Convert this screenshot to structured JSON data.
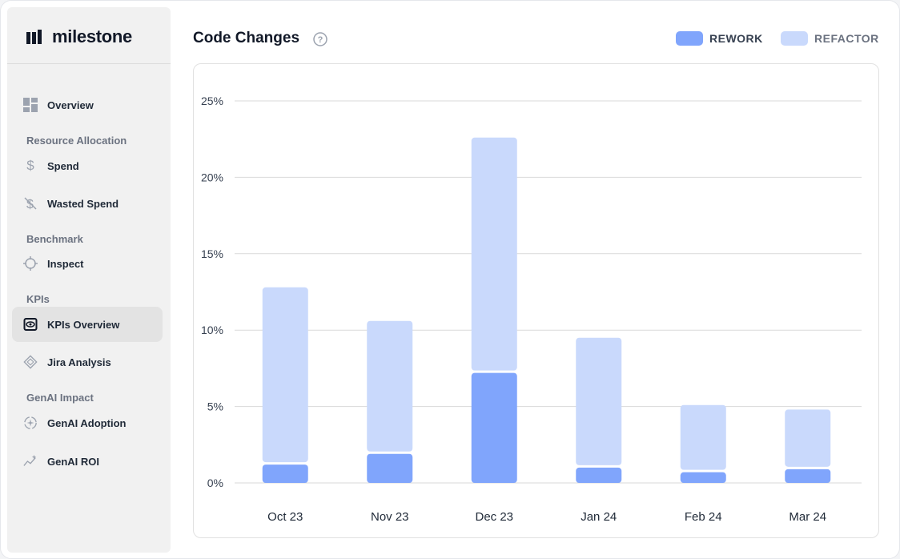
{
  "app": {
    "logo_text": "milestone"
  },
  "sidebar": {
    "items": [
      {
        "label": "Overview",
        "icon": "dashboard-icon"
      },
      {
        "label": "Spend",
        "icon": "dollar-icon"
      },
      {
        "label": "Wasted Spend",
        "icon": "dollar-slash-icon"
      },
      {
        "label": "Inspect",
        "icon": "crosshair-icon"
      },
      {
        "label": "KPIs Overview",
        "icon": "eye-icon",
        "active": true
      },
      {
        "label": "Jira Analysis",
        "icon": "diamond-icon"
      },
      {
        "label": "GenAI Adoption",
        "icon": "sparkle-cycle-icon"
      },
      {
        "label": "GenAI ROI",
        "icon": "sparkle-trend-icon"
      }
    ],
    "sections": [
      "Resource Allocation",
      "Benchmark",
      "KPIs",
      "GenAI Impact"
    ]
  },
  "header": {
    "title": "Code Changes"
  },
  "colors": {
    "rework": "#80a5fc",
    "refactor": "#c9d9fc"
  },
  "chart_data": {
    "type": "bar",
    "stacked": true,
    "categories": [
      "Oct 23",
      "Nov 23",
      "Dec 23",
      "Jan 24",
      "Feb 24",
      "Mar 24"
    ],
    "series": [
      {
        "name": "REWORK",
        "values": [
          1.2,
          1.9,
          7.2,
          1.0,
          0.7,
          0.9
        ]
      },
      {
        "name": "REFACTOR",
        "values": [
          11.6,
          8.7,
          15.4,
          8.5,
          4.4,
          3.9
        ]
      }
    ],
    "y_ticks": [
      "0%",
      "5%",
      "10%",
      "15%",
      "20%",
      "25%"
    ],
    "ylim": [
      0,
      25
    ],
    "grid": true,
    "legend": "top-right"
  }
}
